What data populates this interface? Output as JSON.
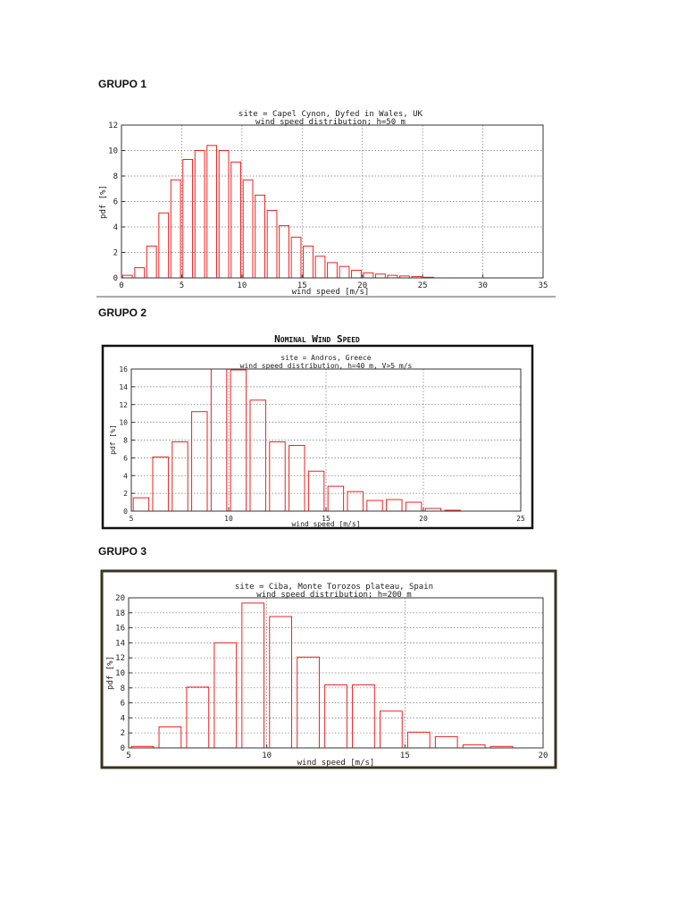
{
  "headings": [
    "GRUPO 1",
    "GRUPO 2",
    "GRUPO 3"
  ],
  "colors": {
    "bar": "#ee2222",
    "grid": "#777777",
    "text": "#222222"
  },
  "chart_data": [
    {
      "type": "bar",
      "title": "site = Capel Cynon, Dyfed in Wales, UK",
      "subtitle": "wind speed distribution; h=50 m",
      "xlabel": "wind speed [m/s]",
      "ylabel": "pdf [%]",
      "xlim": [
        0,
        35
      ],
      "ylim": [
        0,
        12
      ],
      "xticks": [
        0,
        5,
        10,
        15,
        20,
        25,
        30,
        35
      ],
      "yticks": [
        0,
        2,
        4,
        6,
        8,
        10,
        12
      ],
      "bins_start": [
        0,
        1,
        2,
        3,
        4,
        5,
        6,
        7,
        8,
        9,
        10,
        11,
        12,
        13,
        14,
        15,
        16,
        17,
        18,
        19,
        20,
        21,
        22,
        23,
        24,
        25
      ],
      "values": [
        0.2,
        0.8,
        2.5,
        5.1,
        7.7,
        9.3,
        10.0,
        10.4,
        10.0,
        9.1,
        7.7,
        6.5,
        5.3,
        4.1,
        3.2,
        2.5,
        1.7,
        1.2,
        0.9,
        0.6,
        0.4,
        0.3,
        0.2,
        0.15,
        0.1,
        0.05
      ],
      "grid": true
    },
    {
      "type": "bar",
      "frame_title": "Nominal Wind Speed",
      "title": "site = Andros, Greece",
      "subtitle": "wind speed distribution, h=40 m, V>5 m/s",
      "xlabel": "wind speed [m/s]",
      "ylabel": "pdf [%]",
      "xlim": [
        5,
        25
      ],
      "ylim": [
        0,
        16
      ],
      "xticks": [
        5,
        10,
        15,
        20,
        25
      ],
      "yticks": [
        0,
        2,
        4,
        6,
        8,
        10,
        12,
        14,
        16
      ],
      "bins_start": [
        5,
        6,
        7,
        8,
        9,
        10,
        11,
        12,
        13,
        14,
        15,
        16,
        17,
        18,
        19,
        20,
        21
      ],
      "values": [
        1.5,
        6.1,
        7.8,
        11.2,
        16.0,
        15.9,
        12.5,
        7.8,
        7.4,
        4.5,
        2.8,
        2.2,
        1.2,
        1.3,
        1.0,
        0.3,
        0.1
      ],
      "grid": true
    },
    {
      "type": "bar",
      "title": "site = Ciba, Monte Torozos plateau, Spain",
      "subtitle": "wind speed distribution; h=200 m",
      "xlabel": "wind speed [m/s]",
      "ylabel": "pdf [%]",
      "xlim": [
        5,
        20
      ],
      "ylim": [
        0,
        20
      ],
      "xticks": [
        5,
        10,
        15,
        20
      ],
      "yticks": [
        0,
        2,
        4,
        6,
        8,
        10,
        12,
        14,
        16,
        18,
        20
      ],
      "bins_start": [
        5,
        6,
        7,
        8,
        9,
        10,
        11,
        12,
        13,
        14,
        15,
        16,
        17,
        18
      ],
      "values": [
        0.2,
        2.8,
        8.1,
        14.0,
        19.3,
        17.5,
        12.1,
        8.4,
        8.4,
        4.9,
        2.1,
        1.5,
        0.4,
        0.2
      ],
      "grid": true
    }
  ]
}
